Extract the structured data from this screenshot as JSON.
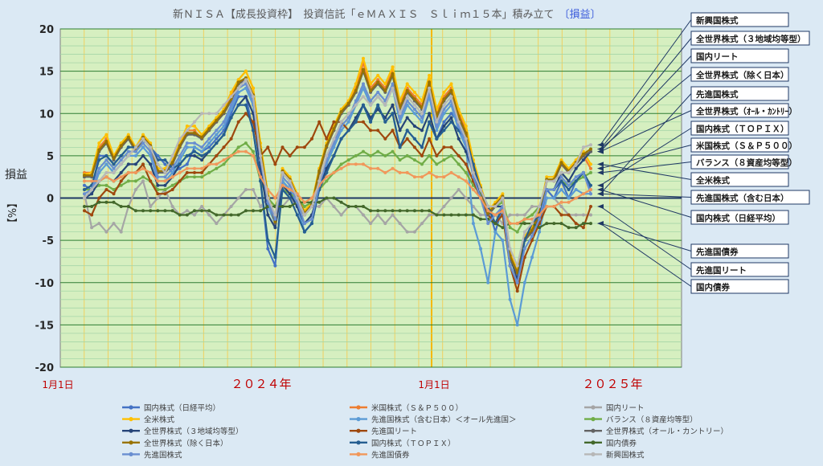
{
  "chart_data": {
    "type": "line",
    "title": "新ＮＩＳＡ【成長投資枠】　投資信託「ｅＭＡＸＩＳ　Ｓｌｉｍ１５本」積み立て",
    "title_suffix": "〔損益〕",
    "ylabel_main": "損益",
    "ylabel_unit": "【%】",
    "ylim": [
      -20,
      20
    ],
    "y_ticks": [
      "20",
      "15",
      "10",
      "5",
      "0",
      "-5",
      "-10",
      "-15",
      "-20"
    ],
    "x_labels": {
      "start": "1月1日",
      "year1": "２０２４年",
      "mid": "1月1日",
      "year2": "２０２５年"
    },
    "colors": {
      "plot_bg": "#d6efc0",
      "grid_major": "#2e7d32",
      "grid_minor": "#a5d6a7",
      "vgrid": "#f0d060",
      "vgrid_year": "#f5b800",
      "title": "#595959",
      "title_suffix": "#3b5bdb",
      "axis_label": "#c00000",
      "callout_border": "#1f3864"
    },
    "callouts": [
      "新興国株式",
      "全世界株式（３地域均等型）",
      "国内リート",
      "全世界株式（除く日本）",
      "先進国株式",
      "全世界株式（ｵｰﾙ・ｶﾝﾄﾘｰ）",
      "国内株式（ＴＯＰＩＸ）",
      "米国株式（Ｓ＆Ｐ５００）",
      "バランス（８資産均等型）",
      "全米株式",
      "先進国株式（含む日本）",
      "国内株式（日経平均）",
      "先進国債券",
      "先進国リート",
      "国内債券"
    ],
    "series": [
      {
        "name": "国内株式（日経平均）",
        "color": "#4472c4",
        "values": [
          1.5,
          1,
          5,
          5,
          4,
          5,
          6,
          6,
          7,
          6,
          5,
          4,
          3,
          3.5,
          4,
          6,
          5.5,
          6,
          7,
          8,
          10,
          12,
          12,
          8,
          2,
          -6,
          -8,
          2,
          1,
          -1,
          -4,
          -3,
          1,
          3,
          5,
          7,
          8,
          9,
          11,
          9,
          11,
          9,
          10,
          6,
          8,
          7,
          6,
          9,
          7,
          9,
          10,
          9,
          8,
          4,
          1,
          -1,
          -4,
          -1,
          -8,
          -10,
          -5,
          -4,
          -3,
          1,
          0,
          2,
          0,
          2,
          3,
          1
        ]
      },
      {
        "name": "米国株式（Ｓ＆Ｐ５００）",
        "color": "#ed7d31",
        "values": [
          3,
          3,
          6,
          7,
          5,
          6,
          7,
          6,
          7,
          6,
          3,
          3,
          4,
          6,
          8,
          8,
          7,
          8,
          9,
          10,
          12,
          14,
          15,
          13,
          6,
          0,
          -3,
          3,
          2,
          0,
          -2,
          -1,
          3,
          6,
          8,
          10,
          11,
          13,
          16,
          13,
          14,
          13,
          15,
          11,
          13,
          12,
          11,
          14,
          10,
          12,
          13,
          10,
          8,
          4,
          1,
          -2,
          -1,
          0,
          -7,
          -9,
          -5,
          -4,
          -2,
          2,
          2,
          4,
          3,
          4,
          5,
          3.5
        ]
      },
      {
        "name": "国内リート",
        "color": "#a5a5a5",
        "values": [
          0.5,
          -3.5,
          -3,
          -4,
          -3,
          -4,
          -1,
          1,
          2,
          -1,
          0,
          1,
          -1,
          -2,
          -1.5,
          -2,
          -1,
          -2,
          -3,
          -2,
          -1,
          0,
          1,
          1,
          -1,
          0,
          -1,
          -1,
          0,
          -1,
          -2,
          -1,
          -1,
          0,
          -1,
          -2,
          -1,
          -1,
          -2,
          -3,
          -2,
          -3,
          -2,
          -3,
          -4,
          -4,
          -3,
          -2,
          -2,
          -1,
          0,
          1,
          0,
          -1,
          -2,
          -2,
          -2,
          -3,
          -2,
          -2,
          -2,
          -1,
          -1,
          0,
          0,
          -1,
          -2,
          -2,
          -2,
          -2
        ]
      },
      {
        "name": "全米株式",
        "color": "#ffc000",
        "values": [
          2.8,
          3,
          6.5,
          7.5,
          5,
          6.5,
          7.5,
          6,
          7.5,
          6.5,
          3.5,
          3.5,
          4.5,
          6.5,
          8.5,
          8.5,
          7.5,
          8.5,
          9.5,
          10.5,
          12.5,
          14,
          15,
          13,
          6.5,
          0.5,
          -2.5,
          3.5,
          2.5,
          0.5,
          -1.5,
          -0.5,
          3.5,
          6.5,
          8.5,
          10.5,
          11.5,
          13.5,
          16.5,
          13.5,
          14.5,
          13.5,
          15.5,
          11.5,
          13.5,
          12.5,
          11.5,
          14.5,
          10.5,
          12.5,
          13.5,
          10.5,
          8.5,
          4.5,
          1.5,
          -1.5,
          -0.5,
          0.5,
          -6.5,
          -8.5,
          -4.5,
          -3.5,
          -1.5,
          2.5,
          2.5,
          4.5,
          3.5,
          4.5,
          5.5,
          4
        ]
      },
      {
        "name": "先進国株式（含む日本）＜オール先進国＞",
        "color": "#5b9bd5",
        "values": [
          0,
          0.5,
          3,
          4,
          3,
          4,
          5,
          5,
          6,
          5,
          2,
          2,
          3,
          4.5,
          6,
          6,
          5.5,
          6.5,
          7.5,
          8.5,
          10.5,
          12.5,
          13,
          11,
          4,
          -1,
          -3,
          2,
          1,
          -1,
          -4,
          -3,
          1,
          4,
          6,
          8,
          9,
          11,
          13,
          11,
          12,
          11,
          13,
          9,
          11,
          10,
          9,
          12,
          8,
          10,
          11,
          8,
          6,
          -3,
          -6,
          -10,
          -4,
          -5,
          -12,
          -15,
          -10,
          -7,
          -4,
          0,
          0,
          1,
          0,
          1,
          0.5,
          0.5
        ]
      },
      {
        "name": "バランス（８資産均等型）",
        "color": "#70ad47",
        "values": [
          1,
          1,
          1.5,
          1.5,
          1,
          1.5,
          2,
          2,
          2.5,
          2,
          1,
          1,
          1.5,
          2,
          2.5,
          2.5,
          2.5,
          3,
          3.5,
          4,
          5,
          6,
          6.5,
          5.5,
          2,
          0,
          -1,
          1,
          0.5,
          0,
          -1,
          -0.5,
          1,
          2,
          3,
          4,
          4.5,
          5,
          5.5,
          5,
          5.5,
          5,
          5.5,
          4.5,
          5,
          4.5,
          4,
          5,
          4,
          4.5,
          5,
          4,
          3,
          1.5,
          0.5,
          -1,
          -1,
          -0.5,
          -3.5,
          -4,
          -2.5,
          -2,
          -1,
          1,
          1,
          2,
          1.5,
          2,
          2.5,
          3
        ]
      },
      {
        "name": "全世界株式（３地域均等型）",
        "color": "#264478",
        "values": [
          0,
          0.5,
          2,
          2.5,
          2,
          3,
          4,
          4,
          5,
          4,
          1.5,
          1.5,
          2.5,
          4,
          5,
          5,
          4.5,
          5.5,
          6.5,
          7.5,
          9.5,
          11,
          12,
          10,
          3.5,
          -2,
          -3.5,
          1.5,
          0.5,
          -1,
          -3,
          -2,
          1,
          3.5,
          5,
          7,
          8,
          9.5,
          11,
          9.5,
          10.5,
          9.5,
          11,
          8,
          9.5,
          8.5,
          8,
          10,
          7,
          8.5,
          9.5,
          7,
          5.5,
          3,
          0,
          -2,
          -1,
          -1,
          -7,
          -9.5,
          -5,
          -4,
          -2.5,
          1,
          1,
          3,
          2,
          3.5,
          4.5,
          5.5
        ]
      },
      {
        "name": "先進国リート",
        "color": "#9e480e",
        "values": [
          -1.5,
          -2,
          0,
          1,
          0.5,
          2,
          3,
          3,
          4,
          2,
          0.5,
          0.5,
          1,
          2,
          3,
          3,
          3,
          4,
          5,
          6,
          7,
          9,
          10,
          9,
          5,
          6,
          4,
          6,
          5,
          6,
          6,
          7,
          9,
          7,
          9,
          9,
          8,
          9,
          9,
          8,
          8,
          7,
          8,
          6,
          7,
          6,
          5,
          7,
          5,
          6,
          6,
          5,
          4,
          2,
          0,
          -2,
          -3,
          -2,
          -8,
          -11,
          -7,
          -5,
          -3,
          -1,
          -1,
          -2,
          -2,
          -3,
          -3.5,
          -1
        ]
      },
      {
        "name": "全世界株式（オール・カントリー）",
        "color": "#636363",
        "values": [
          2.5,
          2.5,
          5.5,
          6.5,
          4.5,
          6,
          7,
          5.5,
          7,
          6,
          3,
          3,
          4,
          6,
          7.5,
          7.5,
          7,
          8,
          9,
          10,
          11.5,
          13.5,
          14,
          12,
          5.5,
          0,
          -3,
          3,
          2,
          0,
          -2,
          -1,
          3,
          6,
          8,
          10,
          11,
          12.5,
          15,
          12.5,
          13.5,
          12.5,
          14.5,
          10.5,
          12.5,
          11.5,
          10.5,
          13.5,
          9.5,
          11.5,
          12.5,
          9.5,
          7.5,
          3.5,
          1,
          -2,
          -1,
          0,
          -7,
          -9,
          -5,
          -4,
          -2,
          2,
          2,
          4,
          3,
          4,
          5,
          5.5
        ]
      },
      {
        "name": "全世界株式（除く日本）",
        "color": "#997300",
        "values": [
          2.7,
          2.7,
          5.7,
          6.7,
          4.7,
          6.2,
          7.2,
          5.7,
          7.2,
          6.2,
          3.2,
          3.2,
          4.2,
          6.2,
          7.7,
          7.7,
          7.2,
          8.2,
          9.2,
          10.2,
          11.7,
          13.7,
          14.2,
          12.2,
          5.7,
          0.2,
          -2.8,
          3.2,
          2.2,
          0.2,
          -1.8,
          -0.8,
          3.2,
          6.2,
          8.2,
          10.2,
          11.2,
          12.7,
          15.2,
          12.7,
          13.7,
          12.7,
          14.7,
          10.7,
          12.7,
          11.7,
          10.7,
          13.7,
          9.7,
          11.7,
          12.7,
          9.7,
          7.7,
          3.7,
          1.2,
          -1.8,
          -0.8,
          0.2,
          -6.8,
          -8.8,
          -4.8,
          -3.8,
          -1.8,
          2.2,
          2.2,
          4.2,
          3.2,
          4.2,
          5.2,
          5.8
        ]
      },
      {
        "name": "国内株式（ＴＯＰＩＸ）",
        "color": "#255e91",
        "values": [
          1,
          1.5,
          4.5,
          5,
          4,
          5,
          6,
          6,
          7,
          6,
          4.5,
          4.5,
          3.5,
          4,
          5,
          5.5,
          5,
          5.5,
          6.5,
          7.5,
          9.5,
          11,
          11,
          8,
          2,
          -5,
          -7,
          1,
          0,
          -2,
          -4,
          -3,
          1,
          3,
          5,
          7,
          8,
          9,
          11,
          9,
          11,
          9,
          10,
          6,
          8,
          7,
          6,
          9,
          7,
          8,
          9,
          8,
          7,
          4,
          1,
          -1,
          -3,
          -1,
          -8,
          -10,
          -5,
          -3,
          -2,
          1,
          1,
          2,
          1,
          2,
          3,
          1.5
        ]
      },
      {
        "name": "国内債券",
        "color": "#43682b",
        "values": [
          -1,
          -1,
          -0.5,
          -0.5,
          -0.5,
          -1,
          -1,
          -1.5,
          -1.5,
          -1.5,
          -1.5,
          -1.5,
          -1.5,
          -2,
          -2,
          -1.5,
          -1.5,
          -1.5,
          -2,
          -2,
          -2,
          -2,
          -1.5,
          -1.5,
          -1.5,
          -1,
          -1,
          -1,
          -1,
          -0.5,
          -0.5,
          -0.5,
          -0.5,
          0,
          0,
          -0.5,
          -1,
          -1,
          -1,
          -1.5,
          -1.5,
          -1.5,
          -1.5,
          -1.5,
          -1.5,
          -1.5,
          -1.5,
          -1.5,
          -2,
          -2,
          -2,
          -2,
          -2,
          -2,
          -2.5,
          -2.5,
          -3,
          -3.5,
          -3,
          -3,
          -3,
          -3,
          -3.5,
          -3,
          -3,
          -3,
          -3.5,
          -3.5,
          -3,
          -3
        ]
      },
      {
        "name": "先進国株式",
        "color": "#698ed0",
        "values": [
          0.5,
          1,
          3.5,
          4.5,
          3.5,
          4.5,
          5.5,
          5.5,
          6.5,
          5.5,
          2.5,
          2.5,
          3.5,
          5,
          6.5,
          6.5,
          6,
          7,
          8,
          9,
          11,
          13,
          13.5,
          11.5,
          4.5,
          -0.5,
          -2.5,
          2.5,
          1.5,
          -0.5,
          -3,
          -2.5,
          1.5,
          4.5,
          6.5,
          8.5,
          9.5,
          11.5,
          13.5,
          11.5,
          12.5,
          11.5,
          13.5,
          9.5,
          11.5,
          10.5,
          9.5,
          12.5,
          8.5,
          10.5,
          11.5,
          8.5,
          6.5,
          2.5,
          0,
          -3,
          -2,
          -1,
          -8,
          -10,
          -6,
          -4.5,
          -2.5,
          1,
          1,
          2.5,
          1.5,
          2.5,
          3,
          0.5
        ]
      },
      {
        "name": "先進国債券",
        "color": "#f1975a",
        "values": [
          2,
          2,
          2,
          2.5,
          2,
          2.5,
          3,
          3,
          3.5,
          3,
          2,
          2,
          2.5,
          3,
          3.5,
          3.5,
          3.5,
          4,
          4,
          4.5,
          5,
          5.5,
          5.5,
          5,
          2.5,
          1,
          0,
          1.5,
          1,
          0.5,
          -0.5,
          0,
          1.5,
          2.5,
          3,
          3.5,
          4,
          4,
          4,
          3.5,
          3.5,
          3,
          3.5,
          3,
          3,
          2.5,
          2.5,
          3,
          2.5,
          2.5,
          3,
          2.5,
          2,
          1,
          0,
          -1.5,
          -2,
          -1.5,
          -3,
          -3,
          -2.5,
          -2.5,
          -2,
          -1,
          -1,
          -0.5,
          -0.5,
          0,
          0.5,
          1
        ]
      },
      {
        "name": "新興国株式",
        "color": "#b7b7b7",
        "values": [
          0,
          1,
          2,
          3,
          3,
          4,
          5,
          6,
          7,
          6,
          4,
          3,
          5,
          7,
          8,
          9,
          10,
          10,
          10,
          11,
          12,
          13,
          14,
          12,
          5,
          0,
          -2,
          3,
          2,
          0,
          -2,
          -1,
          2,
          5,
          7,
          9,
          10,
          11,
          12,
          11,
          12,
          11,
          13,
          10,
          12,
          11,
          10,
          13,
          9,
          11,
          12,
          9,
          7,
          3,
          1,
          -1,
          -1,
          0,
          -6,
          -8,
          -4,
          -3,
          -1,
          2,
          2,
          3,
          3,
          4,
          6,
          6.3
        ]
      }
    ],
    "legend": [
      "国内株式（日経平均）",
      "米国株式（Ｓ＆Ｐ５００）",
      "国内リート",
      "全米株式",
      "先進国株式（含む日本）＜オール先進国＞",
      "バランス（８資産均等型）",
      "全世界株式（３地域均等型）",
      "先進国リート",
      "全世界株式（オール・カントリー）",
      "全世界株式（除く日本）",
      "国内株式（ＴＯＰＩＸ）",
      "国内債券",
      "先進国株式",
      "先進国債券",
      "新興国株式"
    ]
  }
}
